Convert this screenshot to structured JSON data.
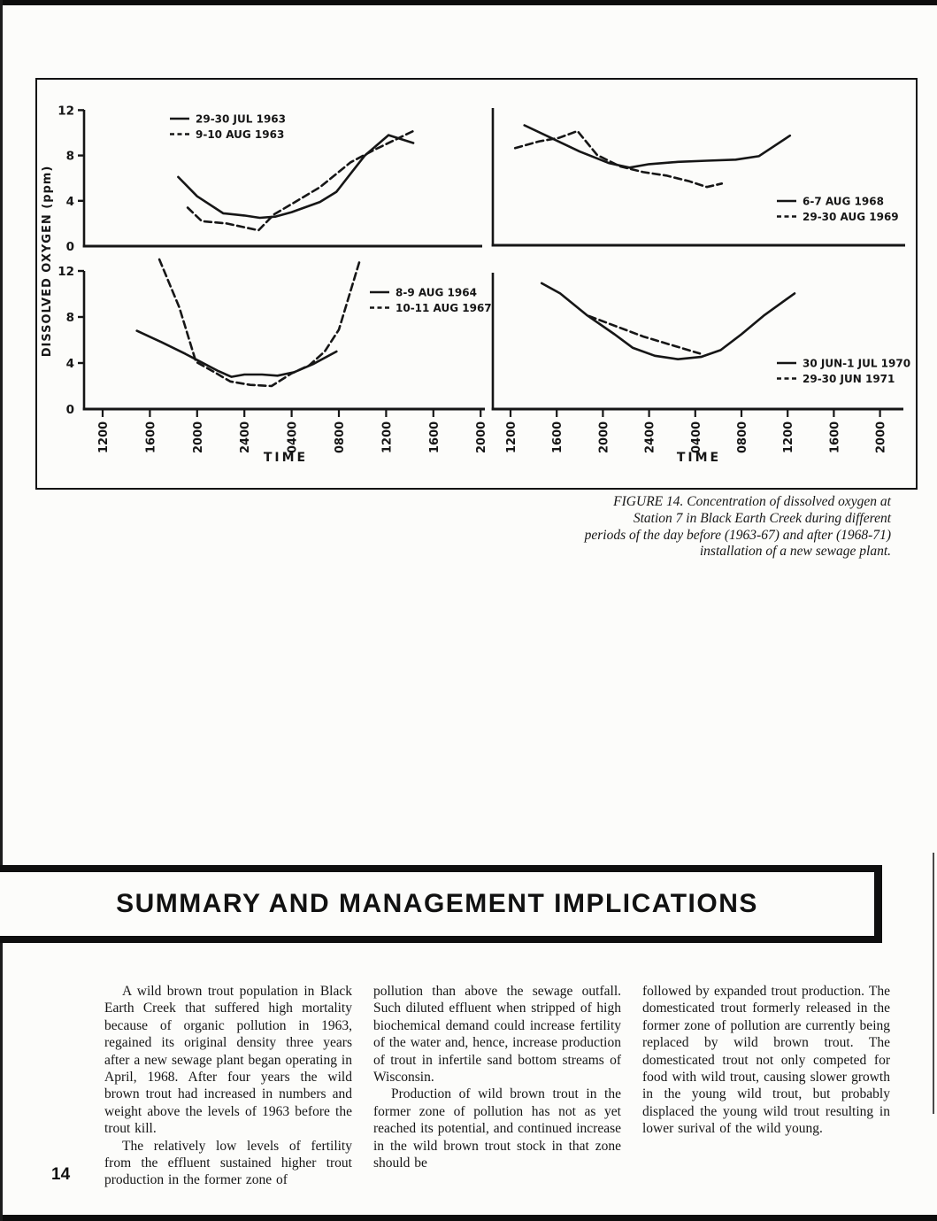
{
  "page": {
    "number": "14",
    "ink": "#161616",
    "paper": "#fcfcfa"
  },
  "figure": {
    "ylabel": "DISSOLVED OXYGEN (ppm)",
    "xlabel": "TIME",
    "caption_lines": [
      "FIGURE 14. Concentration of dissolved oxygen at",
      "Station 7 in Black Earth Creek during different",
      "periods of the day before (1963-67) and after (1968-71)",
      "installation of a new sewage plant."
    ]
  },
  "chart_data": [
    {
      "type": "line",
      "panel": "top_left",
      "ylim": [
        0,
        12
      ],
      "y_ticks": [
        0,
        4,
        8,
        12
      ],
      "show_y_tick_labels": true,
      "x_label": "TIME",
      "x_ticks": null,
      "series": [
        {
          "name": "29-30 JUL 1963",
          "line": "solid",
          "points": [
            [
              18.4,
              6.1
            ],
            [
              20,
              4.4
            ],
            [
              22.2,
              2.9
            ],
            [
              24,
              2.7
            ],
            [
              25.3,
              2.5
            ],
            [
              26.6,
              2.6
            ],
            [
              28,
              3.0
            ],
            [
              30.4,
              3.9
            ],
            [
              31.8,
              4.8
            ],
            [
              33,
              6.4
            ],
            [
              34.2,
              8.0
            ],
            [
              36.2,
              9.8
            ],
            [
              38.3,
              9.1
            ]
          ]
        },
        {
          "name": "9-10 AUG 1963",
          "line": "dashed",
          "points": [
            [
              19.2,
              3.4
            ],
            [
              20.4,
              2.2
            ],
            [
              22.5,
              2.0
            ],
            [
              25.2,
              1.4
            ],
            [
              26.5,
              2.8
            ],
            [
              28.3,
              3.9
            ],
            [
              30.4,
              5.2
            ],
            [
              33,
              7.4
            ],
            [
              35,
              8.5
            ],
            [
              38.4,
              10.2
            ]
          ]
        }
      ]
    },
    {
      "type": "line",
      "panel": "top_right",
      "ylim": [
        0,
        12
      ],
      "y_ticks": [
        0,
        4,
        8,
        12
      ],
      "show_y_tick_labels": false,
      "x_label": "TIME",
      "x_ticks": null,
      "series": [
        {
          "name": "6-7 AUG 1968",
          "line": "solid",
          "points": [
            [
              13.2,
              10.5
            ],
            [
              15.5,
              9.4
            ],
            [
              18,
              8.2
            ],
            [
              20.5,
              7.2
            ],
            [
              22.3,
              6.8
            ],
            [
              24,
              7.1
            ],
            [
              26.5,
              7.3
            ],
            [
              29,
              7.4
            ],
            [
              31.5,
              7.5
            ],
            [
              33.5,
              7.8
            ],
            [
              36.2,
              9.6
            ]
          ]
        },
        {
          "name": "29-30 AUG 1969",
          "line": "dashed",
          "points": [
            [
              12.4,
              8.5
            ],
            [
              14.5,
              9.1
            ],
            [
              16.2,
              9.4
            ],
            [
              17.8,
              10.0
            ],
            [
              19.5,
              7.9
            ],
            [
              21.5,
              6.9
            ],
            [
              23.5,
              6.4
            ],
            [
              25.5,
              6.1
            ],
            [
              27.5,
              5.6
            ],
            [
              29,
              5.1
            ],
            [
              30.3,
              5.4
            ]
          ]
        }
      ]
    },
    {
      "type": "line",
      "panel": "bottom_left",
      "ylim": [
        0,
        12
      ],
      "y_ticks": [
        0,
        4,
        8,
        12
      ],
      "show_y_tick_labels": true,
      "x_label": "TIME",
      "x_ticks": [
        "1200",
        "1600",
        "2000",
        "2400",
        "0400",
        "0800",
        "1200",
        "1600",
        "2000"
      ],
      "series": [
        {
          "name": "8-9 AUG 1964",
          "line": "solid",
          "points": [
            [
              14.9,
              6.8
            ],
            [
              17,
              5.8
            ],
            [
              19,
              4.8
            ],
            [
              20.3,
              4.1
            ],
            [
              21.8,
              3.3
            ],
            [
              22.9,
              2.8
            ],
            [
              24,
              3.0
            ],
            [
              25.5,
              3.0
            ],
            [
              26.8,
              2.9
            ],
            [
              28.2,
              3.2
            ],
            [
              29.8,
              3.9
            ],
            [
              31.8,
              5.0
            ]
          ]
        },
        {
          "name": "10-11 AUG 1967",
          "line": "dashed",
          "points": [
            [
              16.8,
              13.0
            ],
            [
              18.5,
              8.8
            ],
            [
              19.9,
              4.1
            ],
            [
              21.3,
              3.3
            ],
            [
              22.8,
              2.4
            ],
            [
              24.5,
              2.1
            ],
            [
              26.3,
              2.0
            ],
            [
              28,
              3.1
            ],
            [
              29.5,
              3.8
            ],
            [
              30.8,
              5.0
            ],
            [
              32,
              6.9
            ],
            [
              33.8,
              13.0
            ]
          ]
        }
      ]
    },
    {
      "type": "line",
      "panel": "bottom_right",
      "ylim": [
        0,
        12
      ],
      "y_ticks": [
        0,
        4,
        8,
        12
      ],
      "show_y_tick_labels": false,
      "x_label": "TIME",
      "x_ticks": [
        "1200",
        "1600",
        "2000",
        "2400",
        "0400",
        "0800",
        "1200",
        "1600",
        "2000"
      ],
      "series": [
        {
          "name": "30 JUN-1 JUL 1970",
          "line": "solid",
          "points": [
            [
              14.7,
              11.1
            ],
            [
              16.3,
              10.2
            ],
            [
              18.6,
              8.3
            ],
            [
              21,
              6.6
            ],
            [
              22.6,
              5.4
            ],
            [
              24.5,
              4.7
            ],
            [
              26.5,
              4.4
            ],
            [
              28.5,
              4.6
            ],
            [
              30.2,
              5.2
            ],
            [
              32,
              6.6
            ],
            [
              34,
              8.3
            ],
            [
              36.6,
              10.2
            ]
          ]
        },
        {
          "name": "29-30 JUN 1971",
          "line": "dashed",
          "points": [
            [
              18.8,
              8.2
            ],
            [
              23.5,
              6.4
            ],
            [
              28.4,
              4.9
            ]
          ]
        }
      ]
    }
  ],
  "section": {
    "title": "SUMMARY AND MANAGEMENT IMPLICATIONS"
  },
  "columns": {
    "col1": {
      "p1": "A wild brown trout population in Black Earth Creek that suffered high mortality because of organic pollution in 1963, regained its original density three years after a new sewage plant began operating in April, 1968. After four years the wild brown trout had increased in numbers and weight above the levels of 1963 before the trout kill.",
      "p2": "The relatively low levels of fertility from the effluent sustained higher trout production in the former zone of"
    },
    "col2": {
      "p1": "pollution than above the sewage outfall. Such diluted effluent when stripped of high biochemical demand could increase fertility of the water and, hence, increase production of trout in infertile sand bottom streams of Wisconsin.",
      "p2": "Production of wild brown trout in the former zone of pollution has not as yet reached its potential, and continued increase in the wild brown trout stock in that zone should be"
    },
    "col3": {
      "p1": "followed by expanded trout production. The domesticated trout formerly released in the former zone of pollution are currently being replaced by wild brown trout. The domesticated trout not only competed for food with wild trout, causing slower growth in the young wild trout, but probably displaced the young wild trout resulting in lower surival of the wild young."
    }
  }
}
